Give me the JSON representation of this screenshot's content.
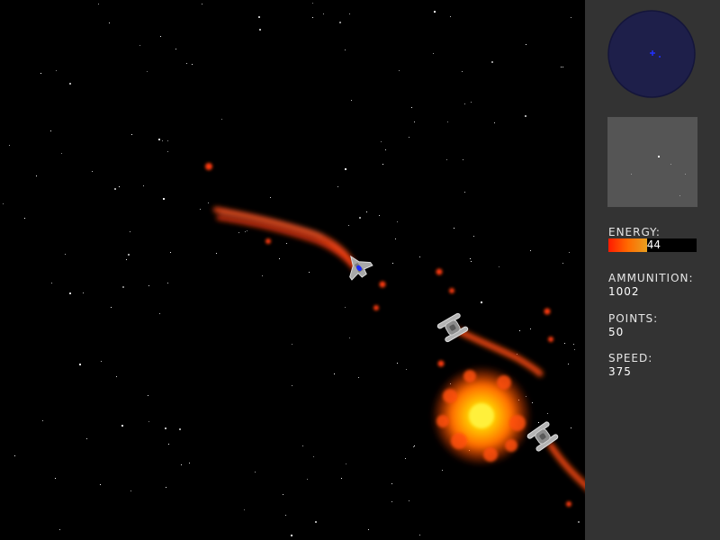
{
  "hud": {
    "energy_label": "ENERGY:",
    "energy_value": "44",
    "energy_fraction": 0.44,
    "ammunition_label": "AMMUNITION:",
    "ammunition_value": "1002",
    "points_label": "POINTS:",
    "points_value": "50",
    "speed_label": "SPEED:",
    "speed_value": "375"
  },
  "colors": {
    "space": "#000000",
    "hud_panel": "#333333",
    "radar_fill": "#1e1f4a",
    "minimap_fill": "#555555",
    "trail": "#ff4010",
    "explosion_core": "#ffe000",
    "explosion_outer": "#ff5a00",
    "ship_gray": "#a8a8a8",
    "player_cockpit": "#1a2aff"
  },
  "icons": {
    "player": "player-ship-icon",
    "enemy": "enemy-ship-icon",
    "explosion": "explosion-icon"
  }
}
